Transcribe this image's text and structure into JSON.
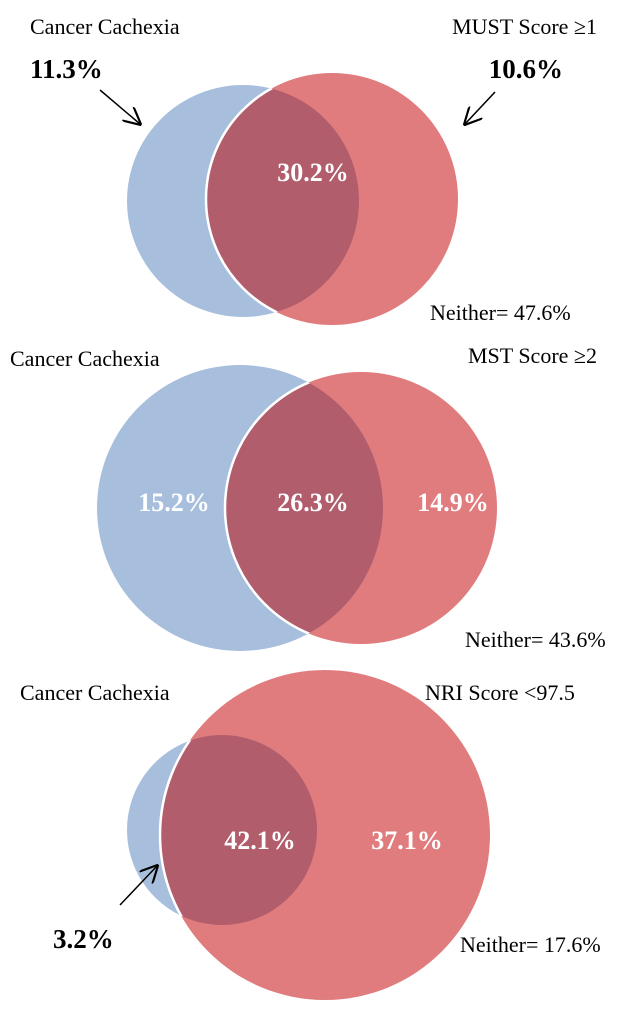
{
  "diagrams": [
    {
      "left_label": "Cancer Cachexia",
      "right_label": "MUST Score ≥1",
      "left_only": "11.3%",
      "overlap": "30.2%",
      "right_only": "10.6%",
      "neither": "Neither= 47.6%"
    },
    {
      "left_label": "Cancer Cachexia",
      "right_label": "MST Score ≥2",
      "left_only": "15.2%",
      "overlap": "26.3%",
      "right_only": "14.9%",
      "neither": "Neither= 43.6%"
    },
    {
      "left_label": "Cancer Cachexia",
      "right_label": "NRI Score <97.5",
      "left_only": "3.2%",
      "overlap": "42.1%",
      "right_only": "37.1%",
      "neither": "Neither= 17.6%"
    }
  ]
}
